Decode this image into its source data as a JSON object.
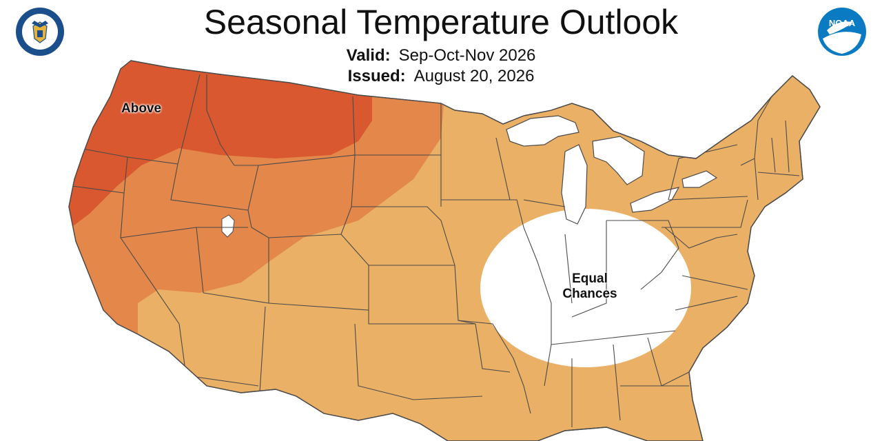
{
  "header": {
    "title": "Seasonal Temperature Outlook",
    "valid_label": "Valid:",
    "valid_value": "Sep-Oct-Nov 2026",
    "issued_label": "Issued:",
    "issued_value": "August 20, 2026"
  },
  "map": {
    "labels": {
      "above": "Above",
      "equal_1": "Equal",
      "equal_2": "Chances"
    },
    "colors": {
      "above_high": "#D9582F",
      "above_mid": "#E3874A",
      "above_low": "#E9B066",
      "equal_chances": "#FFFFFF",
      "state_border": "#4A4A4A"
    }
  },
  "logos": {
    "left": "department-of-commerce-seal",
    "right": "noaa-logo",
    "noaa_text": "NOAA"
  }
}
